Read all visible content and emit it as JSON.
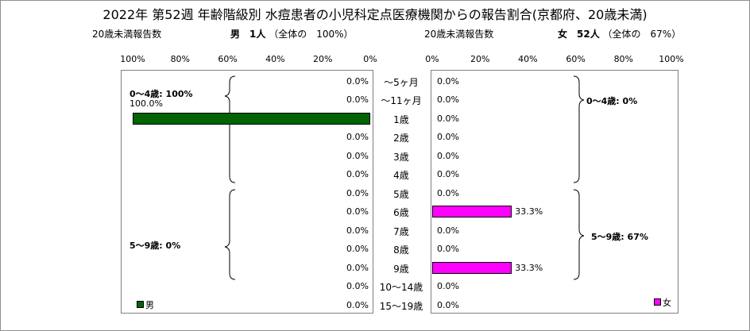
{
  "title": "2022年 第52週 年齢階級別 水痘患者の小児科定点医療機関からの報告割合(京都府、20歳未満)",
  "male": {
    "header_label": "20歳未満報告数",
    "summary": "男　1人",
    "share": "（全体の　100%）",
    "legend": "男",
    "color": "#006400"
  },
  "female": {
    "header_label": "20歳未満報告数",
    "summary": "女　52人",
    "share": "（全体の　67%）",
    "legend": "女",
    "color": "#ff00ff"
  },
  "left_ticks": [
    "100%",
    "80%",
    "60%",
    "40%",
    "20%",
    "0%"
  ],
  "right_ticks": [
    "0%",
    "20%",
    "40%",
    "60%",
    "80%",
    "100%"
  ],
  "group_labels": {
    "male_0_4": "0～4歳: 100%",
    "male_5_9": "5～9歳: 0%",
    "female_0_4": "0～4歳: 0%",
    "female_5_9": "5～9歳: 67%"
  },
  "chart_data": {
    "type": "bar",
    "orientation": "horizontal",
    "categories": [
      "～5ヶ月",
      "～11ヶ月",
      "1歳",
      "2歳",
      "3歳",
      "4歳",
      "5歳",
      "6歳",
      "7歳",
      "8歳",
      "9歳",
      "10～14歳",
      "15～19歳"
    ],
    "series": [
      {
        "name": "男",
        "values": [
          0.0,
          0.0,
          100.0,
          0.0,
          0.0,
          0.0,
          0.0,
          0.0,
          0.0,
          0.0,
          0.0,
          0.0,
          0.0
        ],
        "labels": [
          "0.0%",
          "0.0%",
          "100.0%",
          "0.0%",
          "0.0%",
          "0.0%",
          "0.0%",
          "0.0%",
          "0.0%",
          "0.0%",
          "0.0%",
          "0.0%",
          "0.0%"
        ]
      },
      {
        "name": "女",
        "values": [
          0.0,
          0.0,
          0.0,
          0.0,
          0.0,
          0.0,
          0.0,
          33.3,
          0.0,
          0.0,
          33.3,
          0.0,
          0.0
        ],
        "labels": [
          "0.0%",
          "0.0%",
          "0.0%",
          "0.0%",
          "0.0%",
          "0.0%",
          "0.0%",
          "33.3%",
          "0.0%",
          "0.0%",
          "33.3%",
          "0.0%",
          "0.0%"
        ]
      }
    ],
    "xlim": [
      0,
      100
    ],
    "grid": false,
    "legend_position": "bottom"
  }
}
